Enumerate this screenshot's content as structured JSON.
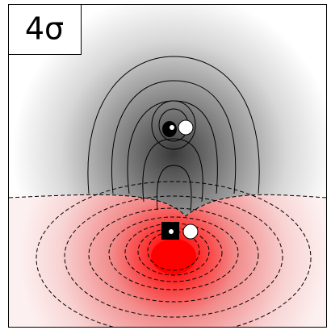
{
  "label": "4σ"
}
